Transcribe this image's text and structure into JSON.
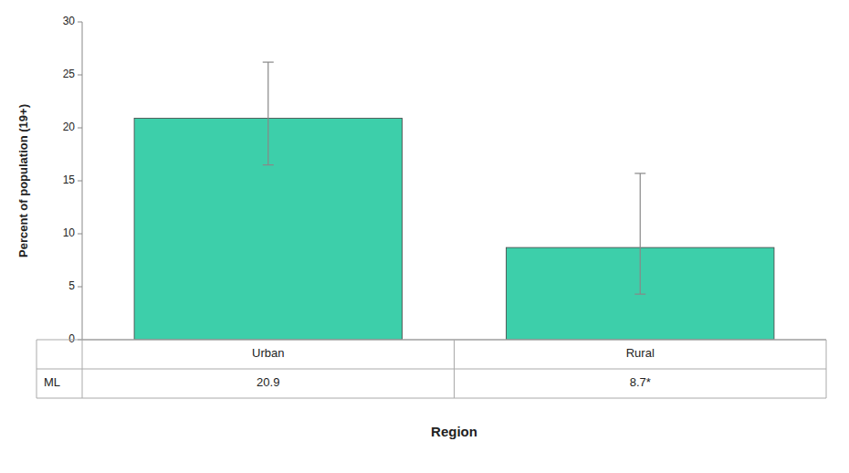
{
  "chart_data": {
    "type": "bar",
    "categories": [
      "Urban",
      "Rural"
    ],
    "values": [
      20.9,
      8.7
    ],
    "error_upper": [
      26.2,
      15.7
    ],
    "error_lower": [
      16.5,
      4.3
    ],
    "color": "#3dcfaa",
    "ylabel": "Percent of population (19+)",
    "xlabel": "Region",
    "ylim": [
      0,
      30
    ],
    "yticks": [
      0,
      5,
      10,
      15,
      20,
      25,
      30
    ],
    "grid": false,
    "table_row_label": "ML",
    "value_labels": [
      "20.9",
      "8.7*"
    ]
  }
}
